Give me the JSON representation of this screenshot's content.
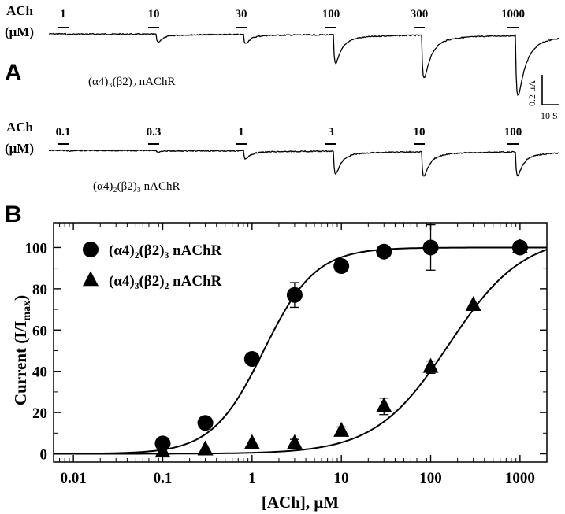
{
  "panel_a": {
    "panel_label": "A",
    "row1": {
      "ach_label": "ACh",
      "unit_label": "(μM)",
      "concentrations": [
        "1",
        "10",
        "30",
        "100",
        "300",
        "1000"
      ],
      "receptor": "(α4)₃(β2)₂ nAChR",
      "peaks": [
        0.008,
        0.1,
        0.11,
        0.32,
        0.46,
        0.62
      ]
    },
    "row2": {
      "ach_label": "ACh",
      "unit_label": "(μM)",
      "concentrations": [
        "0.1",
        "0.3",
        "1",
        "3",
        "10",
        "100"
      ],
      "receptor": "(α4)₂(β2)₃ nAChR",
      "peaks": [
        0.01,
        0.02,
        0.1,
        0.26,
        0.28,
        0.27
      ]
    },
    "scale_bar": {
      "current": "0.2 μA",
      "time": "10 S"
    }
  },
  "panel_b_label": "B",
  "chart_data": {
    "type": "scatter",
    "title": "",
    "xlabel": "[ACh], μM",
    "ylabel": "Current (I/I",
    "ylabel_sub": "max",
    "ylabel_close": ")",
    "x_scale": "log",
    "xlim": [
      0.006,
      2000
    ],
    "ylim": [
      -4,
      112
    ],
    "xticks": [
      0.01,
      0.1,
      1,
      10,
      100,
      1000
    ],
    "xtick_labels": [
      "0.01",
      "0.1",
      "1",
      "10",
      "100",
      "1000"
    ],
    "yticks": [
      0,
      20,
      40,
      60,
      80,
      100
    ],
    "ytick_labels": [
      "0",
      "20",
      "40",
      "60",
      "80",
      "100"
    ],
    "legend_position": "top-left",
    "grid": false,
    "series": [
      {
        "name": "(α4)₂(β2)₃ nAChR",
        "marker": "circle",
        "x": [
          0.1,
          0.3,
          1,
          3,
          10,
          30,
          100,
          1000
        ],
        "y": [
          5,
          15,
          46,
          77,
          91,
          98,
          100,
          100
        ],
        "err": [
          0,
          0,
          0,
          6,
          0,
          0,
          11,
          0
        ],
        "fit": {
          "ec50": 1.35,
          "hill": 1.5,
          "top": 100
        }
      },
      {
        "name": "(α4)₃(β2)₂ nAChR",
        "marker": "triangle",
        "x": [
          0.1,
          0.3,
          1,
          3,
          10,
          30,
          100,
          300,
          1000
        ],
        "y": [
          1,
          2,
          5,
          5,
          11,
          23,
          42,
          72,
          100
        ],
        "err": [
          0,
          0,
          0,
          2,
          2,
          4,
          3,
          0,
          0
        ],
        "fit": {
          "ec50": 160,
          "hill": 1.05,
          "top": 106
        }
      }
    ]
  }
}
